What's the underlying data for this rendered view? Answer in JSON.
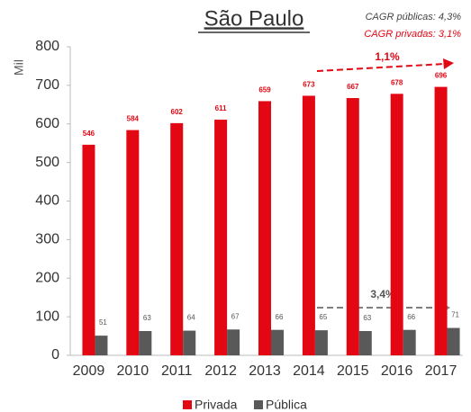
{
  "chart_data": {
    "type": "bar",
    "title": "São Paulo",
    "annotations": [
      "CAGR públicas: 4,3%",
      "CAGR privadas: 3,1%",
      "1,1%",
      "3,4%"
    ],
    "y_label": "Mil",
    "categories": [
      "2009",
      "2010",
      "2011",
      "2012",
      "2013",
      "2014",
      "2015",
      "2016",
      "2017"
    ],
    "series": [
      {
        "name": "Privada",
        "color": "#e30613",
        "values": [
          546,
          584,
          602,
          611,
          659,
          673,
          667,
          678,
          696
        ]
      },
      {
        "name": "Pública",
        "color": "#595959",
        "values": [
          51,
          63,
          64,
          67,
          66,
          65,
          63,
          66,
          71
        ]
      }
    ],
    "ylim": [
      0,
      800
    ],
    "yticks": [
      0,
      100,
      200,
      300,
      400,
      500,
      600,
      700,
      800
    ],
    "grid": false,
    "legend": "bottom"
  }
}
